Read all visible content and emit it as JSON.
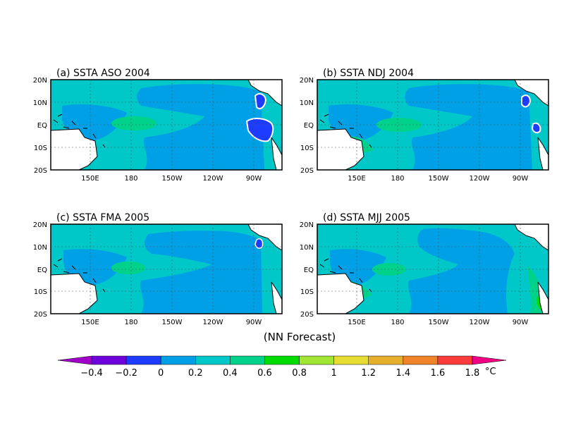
{
  "panels": [
    {
      "title": "(a) SSTA ASO 2004"
    },
    {
      "title": "(b) SSTA NDJ 2004"
    },
    {
      "title": "(c) SSTA FMA 2005"
    },
    {
      "title": "(d) SSTA MJJ 2005"
    }
  ],
  "lat_labels": [
    "20N",
    "10N",
    "EQ",
    "10S",
    "20S"
  ],
  "lon_labels": [
    "150E",
    "180",
    "150W",
    "120W",
    "90W"
  ],
  "caption": "(NN Forecast)",
  "colorbar": {
    "labels": [
      "-0.4",
      "-0.2",
      "0",
      "0.2",
      "0.4",
      "0.6",
      "0.8",
      "1",
      "1.2",
      "1.4",
      "1.6",
      "1.8"
    ],
    "unit": "°C",
    "colors": [
      "#a000c8",
      "#6e00dc",
      "#1e3cff",
      "#00a0e6",
      "#00c8c8",
      "#00d28c",
      "#00dc00",
      "#a0e632",
      "#e6dc32",
      "#e6af2d",
      "#f08228",
      "#fa3c3c",
      "#f00082"
    ]
  }
}
